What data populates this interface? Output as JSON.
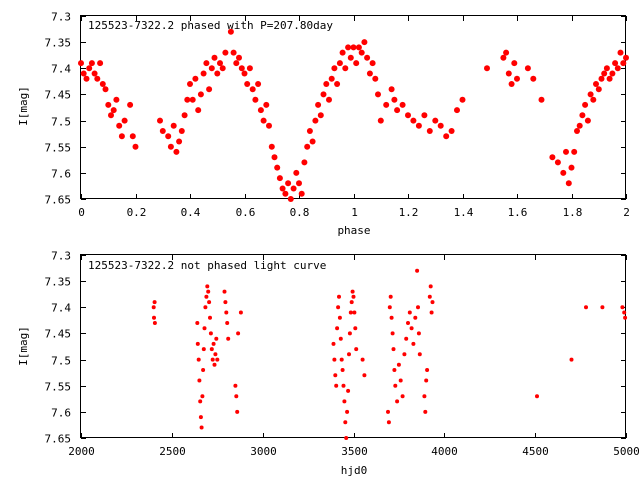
{
  "chart_data": [
    {
      "type": "scatter",
      "title": "125523-7322.2 phased with P=207.80day",
      "xlabel": "phase",
      "ylabel": "I[mag]",
      "xlim": [
        0,
        2
      ],
      "ylim": [
        7.3,
        7.65
      ],
      "y_inverted": true,
      "grid": false,
      "marker_color": "#ff0000",
      "marker": "filled-circle",
      "x_ticks": [
        "0",
        "0.2",
        "0.4",
        "0.6",
        "0.8",
        "1",
        "1.2",
        "1.4",
        "1.6",
        "1.8",
        "2"
      ],
      "y_ticks": [
        "7.3",
        "7.35",
        "7.4",
        "7.45",
        "7.5",
        "7.55",
        "7.6",
        "7.65"
      ],
      "series": [
        {
          "points": [
            [
              0.0,
              7.39
            ],
            [
              0.01,
              7.41
            ],
            [
              0.02,
              7.42
            ],
            [
              0.03,
              7.4
            ],
            [
              0.04,
              7.39
            ],
            [
              0.05,
              7.41
            ],
            [
              0.06,
              7.42
            ],
            [
              0.07,
              7.39
            ],
            [
              0.08,
              7.43
            ],
            [
              0.09,
              7.44
            ],
            [
              0.1,
              7.47
            ],
            [
              0.11,
              7.49
            ],
            [
              0.12,
              7.48
            ],
            [
              0.13,
              7.46
            ],
            [
              0.14,
              7.51
            ],
            [
              0.15,
              7.53
            ],
            [
              0.16,
              7.5
            ],
            [
              0.18,
              7.47
            ],
            [
              0.19,
              7.53
            ],
            [
              0.2,
              7.55
            ],
            [
              0.29,
              7.5
            ],
            [
              0.3,
              7.52
            ],
            [
              0.32,
              7.53
            ],
            [
              0.33,
              7.55
            ],
            [
              0.34,
              7.51
            ],
            [
              0.35,
              7.56
            ],
            [
              0.36,
              7.54
            ],
            [
              0.37,
              7.52
            ],
            [
              0.38,
              7.49
            ],
            [
              0.39,
              7.46
            ],
            [
              0.4,
              7.43
            ],
            [
              0.41,
              7.46
            ],
            [
              0.42,
              7.42
            ],
            [
              0.43,
              7.48
            ],
            [
              0.44,
              7.45
            ],
            [
              0.45,
              7.41
            ],
            [
              0.46,
              7.39
            ],
            [
              0.47,
              7.44
            ],
            [
              0.48,
              7.4
            ],
            [
              0.49,
              7.38
            ],
            [
              0.5,
              7.41
            ],
            [
              0.51,
              7.39
            ],
            [
              0.52,
              7.4
            ],
            [
              0.53,
              7.37
            ],
            [
              0.55,
              7.33
            ],
            [
              0.56,
              7.37
            ],
            [
              0.57,
              7.39
            ],
            [
              0.58,
              7.38
            ],
            [
              0.59,
              7.4
            ],
            [
              0.6,
              7.41
            ],
            [
              0.61,
              7.43
            ],
            [
              0.62,
              7.4
            ],
            [
              0.63,
              7.44
            ],
            [
              0.64,
              7.46
            ],
            [
              0.65,
              7.43
            ],
            [
              0.66,
              7.48
            ],
            [
              0.67,
              7.5
            ],
            [
              0.68,
              7.47
            ],
            [
              0.69,
              7.51
            ],
            [
              0.7,
              7.55
            ],
            [
              0.71,
              7.57
            ],
            [
              0.72,
              7.59
            ],
            [
              0.73,
              7.61
            ],
            [
              0.74,
              7.63
            ],
            [
              0.75,
              7.64
            ],
            [
              0.76,
              7.62
            ],
            [
              0.77,
              7.65
            ],
            [
              0.78,
              7.63
            ],
            [
              0.79,
              7.6
            ],
            [
              0.8,
              7.62
            ],
            [
              0.81,
              7.64
            ],
            [
              0.82,
              7.58
            ],
            [
              0.83,
              7.55
            ],
            [
              0.84,
              7.52
            ],
            [
              0.85,
              7.54
            ],
            [
              0.86,
              7.5
            ],
            [
              0.87,
              7.47
            ],
            [
              0.88,
              7.49
            ],
            [
              0.89,
              7.45
            ],
            [
              0.9,
              7.43
            ],
            [
              0.91,
              7.46
            ],
            [
              0.92,
              7.42
            ],
            [
              0.93,
              7.4
            ],
            [
              0.94,
              7.43
            ],
            [
              0.95,
              7.39
            ],
            [
              0.96,
              7.37
            ],
            [
              0.97,
              7.4
            ],
            [
              0.98,
              7.36
            ],
            [
              0.99,
              7.38
            ],
            [
              1.0,
              7.36
            ],
            [
              1.01,
              7.39
            ],
            [
              1.02,
              7.36
            ],
            [
              1.03,
              7.37
            ],
            [
              1.04,
              7.35
            ],
            [
              1.05,
              7.38
            ],
            [
              1.06,
              7.41
            ],
            [
              1.07,
              7.39
            ],
            [
              1.08,
              7.42
            ],
            [
              1.09,
              7.45
            ],
            [
              1.1,
              7.5
            ],
            [
              1.12,
              7.47
            ],
            [
              1.14,
              7.44
            ],
            [
              1.15,
              7.46
            ],
            [
              1.16,
              7.48
            ],
            [
              1.18,
              7.47
            ],
            [
              1.2,
              7.49
            ],
            [
              1.22,
              7.5
            ],
            [
              1.24,
              7.51
            ],
            [
              1.26,
              7.49
            ],
            [
              1.28,
              7.52
            ],
            [
              1.3,
              7.5
            ],
            [
              1.32,
              7.51
            ],
            [
              1.34,
              7.53
            ],
            [
              1.36,
              7.52
            ],
            [
              1.38,
              7.48
            ],
            [
              1.4,
              7.46
            ],
            [
              1.49,
              7.4
            ],
            [
              1.55,
              7.38
            ],
            [
              1.56,
              7.37
            ],
            [
              1.57,
              7.41
            ],
            [
              1.58,
              7.43
            ],
            [
              1.59,
              7.39
            ],
            [
              1.6,
              7.42
            ],
            [
              1.64,
              7.4
            ],
            [
              1.66,
              7.42
            ],
            [
              1.69,
              7.46
            ],
            [
              1.73,
              7.57
            ],
            [
              1.75,
              7.58
            ],
            [
              1.77,
              7.6
            ],
            [
              1.78,
              7.56
            ],
            [
              1.79,
              7.62
            ],
            [
              1.8,
              7.59
            ],
            [
              1.81,
              7.56
            ],
            [
              1.82,
              7.52
            ],
            [
              1.83,
              7.51
            ],
            [
              1.84,
              7.49
            ],
            [
              1.85,
              7.47
            ],
            [
              1.86,
              7.5
            ],
            [
              1.87,
              7.45
            ],
            [
              1.88,
              7.46
            ],
            [
              1.89,
              7.43
            ],
            [
              1.9,
              7.44
            ],
            [
              1.91,
              7.42
            ],
            [
              1.92,
              7.41
            ],
            [
              1.93,
              7.4
            ],
            [
              1.94,
              7.42
            ],
            [
              1.95,
              7.41
            ],
            [
              1.96,
              7.39
            ],
            [
              1.97,
              7.4
            ],
            [
              1.98,
              7.37
            ],
            [
              1.99,
              7.39
            ],
            [
              2.0,
              7.38
            ]
          ]
        }
      ]
    },
    {
      "type": "scatter",
      "title": "125523-7322.2 not phased light curve",
      "xlabel": "hjd0",
      "ylabel": "I[mag]",
      "xlim": [
        2000,
        5000
      ],
      "ylim": [
        7.3,
        7.65
      ],
      "y_inverted": true,
      "grid": false,
      "marker_color": "#ff0000",
      "marker": "filled-circle",
      "x_ticks": [
        "2000",
        "2500",
        "3000",
        "3500",
        "4000",
        "4500",
        "5000"
      ],
      "y_ticks": [
        "7.3",
        "7.35",
        "7.4",
        "7.45",
        "7.5",
        "7.55",
        "7.6",
        "7.65"
      ],
      "series": [
        {
          "points": [
            [
              2400,
              7.4
            ],
            [
              2402,
              7.42
            ],
            [
              2405,
              7.39
            ],
            [
              2407,
              7.43
            ],
            [
              2640,
              7.43
            ],
            [
              2643,
              7.47
            ],
            [
              2648,
              7.5
            ],
            [
              2652,
              7.54
            ],
            [
              2656,
              7.58
            ],
            [
              2660,
              7.61
            ],
            [
              2664,
              7.63
            ],
            [
              2668,
              7.57
            ],
            [
              2672,
              7.52
            ],
            [
              2676,
              7.48
            ],
            [
              2680,
              7.44
            ],
            [
              2685,
              7.4
            ],
            [
              2690,
              7.38
            ],
            [
              2695,
              7.36
            ],
            [
              2700,
              7.37
            ],
            [
              2705,
              7.39
            ],
            [
              2710,
              7.42
            ],
            [
              2715,
              7.45
            ],
            [
              2720,
              7.48
            ],
            [
              2725,
              7.5
            ],
            [
              2730,
              7.47
            ],
            [
              2735,
              7.51
            ],
            [
              2740,
              7.49
            ],
            [
              2745,
              7.46
            ],
            [
              2750,
              7.5
            ],
            [
              2790,
              7.37
            ],
            [
              2795,
              7.39
            ],
            [
              2800,
              7.41
            ],
            [
              2805,
              7.43
            ],
            [
              2810,
              7.46
            ],
            [
              2850,
              7.55
            ],
            [
              2855,
              7.57
            ],
            [
              2860,
              7.6
            ],
            [
              2865,
              7.45
            ],
            [
              2880,
              7.41
            ],
            [
              3390,
              7.47
            ],
            [
              3395,
              7.5
            ],
            [
              3400,
              7.53
            ],
            [
              3405,
              7.55
            ],
            [
              3410,
              7.44
            ],
            [
              3415,
              7.4
            ],
            [
              3420,
              7.38
            ],
            [
              3425,
              7.42
            ],
            [
              3430,
              7.46
            ],
            [
              3435,
              7.5
            ],
            [
              3440,
              7.52
            ],
            [
              3445,
              7.55
            ],
            [
              3450,
              7.58
            ],
            [
              3455,
              7.62
            ],
            [
              3460,
              7.65
            ],
            [
              3465,
              7.6
            ],
            [
              3470,
              7.56
            ],
            [
              3475,
              7.49
            ],
            [
              3480,
              7.45
            ],
            [
              3485,
              7.41
            ],
            [
              3490,
              7.39
            ],
            [
              3495,
              7.37
            ],
            [
              3500,
              7.38
            ],
            [
              3505,
              7.41
            ],
            [
              3510,
              7.44
            ],
            [
              3515,
              7.48
            ],
            [
              3550,
              7.5
            ],
            [
              3560,
              7.53
            ],
            [
              3690,
              7.6
            ],
            [
              3695,
              7.62
            ],
            [
              3700,
              7.4
            ],
            [
              3705,
              7.38
            ],
            [
              3710,
              7.42
            ],
            [
              3715,
              7.45
            ],
            [
              3720,
              7.48
            ],
            [
              3725,
              7.52
            ],
            [
              3730,
              7.55
            ],
            [
              3740,
              7.58
            ],
            [
              3750,
              7.51
            ],
            [
              3760,
              7.54
            ],
            [
              3770,
              7.57
            ],
            [
              3780,
              7.49
            ],
            [
              3790,
              7.46
            ],
            [
              3800,
              7.43
            ],
            [
              3810,
              7.41
            ],
            [
              3820,
              7.44
            ],
            [
              3830,
              7.47
            ],
            [
              3840,
              7.42
            ],
            [
              3850,
              7.33
            ],
            [
              3855,
              7.4
            ],
            [
              3860,
              7.45
            ],
            [
              3865,
              7.49
            ],
            [
              3890,
              7.57
            ],
            [
              3895,
              7.6
            ],
            [
              3900,
              7.54
            ],
            [
              3905,
              7.52
            ],
            [
              3920,
              7.38
            ],
            [
              3925,
              7.36
            ],
            [
              3930,
              7.41
            ],
            [
              3935,
              7.39
            ],
            [
              4510,
              7.57
            ],
            [
              4700,
              7.5
            ],
            [
              4780,
              7.4
            ],
            [
              4870,
              7.4
            ],
            [
              4980,
              7.4
            ],
            [
              4990,
              7.41
            ],
            [
              4995,
              7.42
            ]
          ]
        }
      ]
    }
  ]
}
